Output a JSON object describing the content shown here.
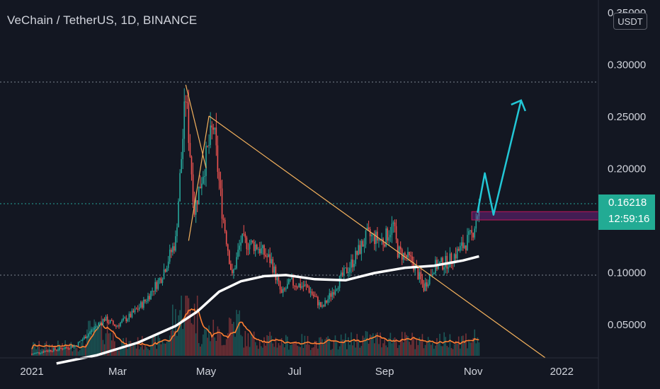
{
  "header": {
    "title": "VeChain / TetherUS, 1D, BINANCE"
  },
  "price_axis": {
    "unit": "USDT",
    "last_price": "0.16218",
    "countdown": "12:59:16"
  },
  "colors": {
    "background": "#131722",
    "up": "#26a69a",
    "down": "#ef5350",
    "trendline": "#f5b25d",
    "arrow": "#22c7d6",
    "zone": "#9c27b0",
    "ma": "#ffffff",
    "volume_ma": "#ff7f32"
  },
  "chart_data": {
    "type": "candlestick",
    "title": "VeChain / TetherUS, 1D, BINANCE",
    "y_ticks": [
      "0.35000",
      "0.30000",
      "0.25000",
      "0.20000",
      "0.15000",
      "0.10000",
      "0.05000"
    ],
    "x_ticks": [
      "2021",
      "Mar",
      "May",
      "Jul",
      "Sep",
      "Nov",
      "2022"
    ],
    "ylim": [
      0.01,
      0.35
    ],
    "last_price": 0.16218,
    "series_close": [
      [
        "2021-01-01",
        0.021
      ],
      [
        "2021-01-10",
        0.024
      ],
      [
        "2021-01-20",
        0.026
      ],
      [
        "2021-01-31",
        0.029
      ],
      [
        "2021-02-10",
        0.042
      ],
      [
        "2021-02-20",
        0.055
      ],
      [
        "2021-02-28",
        0.048
      ],
      [
        "2021-03-10",
        0.058
      ],
      [
        "2021-03-20",
        0.072
      ],
      [
        "2021-03-31",
        0.095
      ],
      [
        "2021-04-10",
        0.13
      ],
      [
        "2021-04-17",
        0.27
      ],
      [
        "2021-04-23",
        0.16
      ],
      [
        "2021-05-01",
        0.21
      ],
      [
        "2021-05-06",
        0.24
      ],
      [
        "2021-05-12",
        0.16
      ],
      [
        "2021-05-19",
        0.095
      ],
      [
        "2021-05-25",
        0.13
      ],
      [
        "2021-06-05",
        0.125
      ],
      [
        "2021-06-15",
        0.11
      ],
      [
        "2021-06-22",
        0.078
      ],
      [
        "2021-06-28",
        0.09
      ],
      [
        "2021-07-10",
        0.085
      ],
      [
        "2021-07-20",
        0.065
      ],
      [
        "2021-07-31",
        0.09
      ],
      [
        "2021-08-10",
        0.11
      ],
      [
        "2021-08-20",
        0.135
      ],
      [
        "2021-08-31",
        0.13
      ],
      [
        "2021-09-07",
        0.145
      ],
      [
        "2021-09-10",
        0.12
      ],
      [
        "2021-09-20",
        0.11
      ],
      [
        "2021-09-28",
        0.085
      ],
      [
        "2021-10-05",
        0.105
      ],
      [
        "2021-10-15",
        0.11
      ],
      [
        "2021-10-25",
        0.125
      ],
      [
        "2021-10-31",
        0.135
      ],
      [
        "2021-11-05",
        0.16218
      ]
    ],
    "moving_average": [
      [
        "2021-01-18",
        0.012
      ],
      [
        "2021-02-15",
        0.02
      ],
      [
        "2021-03-15",
        0.032
      ],
      [
        "2021-04-10",
        0.048
      ],
      [
        "2021-04-25",
        0.062
      ],
      [
        "2021-05-10",
        0.081
      ],
      [
        "2021-05-25",
        0.091
      ],
      [
        "2021-06-10",
        0.096
      ],
      [
        "2021-06-25",
        0.097
      ],
      [
        "2021-07-15",
        0.093
      ],
      [
        "2021-08-05",
        0.092
      ],
      [
        "2021-08-25",
        0.099
      ],
      [
        "2021-09-15",
        0.104
      ],
      [
        "2021-10-05",
        0.106
      ],
      [
        "2021-10-25",
        0.111
      ],
      [
        "2021-11-05",
        0.115
      ]
    ],
    "drawings": {
      "trendline_1": [
        [
          "2021-04-17",
          0.28
        ],
        [
          "2021-05-01",
          0.2
        ]
      ],
      "trendline_2": [
        [
          "2021-04-19",
          0.13
        ],
        [
          "2021-05-03",
          0.25
        ]
      ],
      "descending_trendline": [
        [
          "2021-05-03",
          0.25
        ],
        [
          "2022-01-07",
          0.0
        ]
      ],
      "resistance_zone": {
        "start": "2021-10-31",
        "end": "2022-03-15",
        "top": 0.158,
        "bottom": 0.15
      },
      "projection_arrow": [
        [
          "2021-11-04",
          0.157
        ],
        [
          "2021-11-09",
          0.195
        ],
        [
          "2021-11-15",
          0.155
        ],
        [
          "2021-12-04",
          0.265
        ]
      ]
    }
  }
}
